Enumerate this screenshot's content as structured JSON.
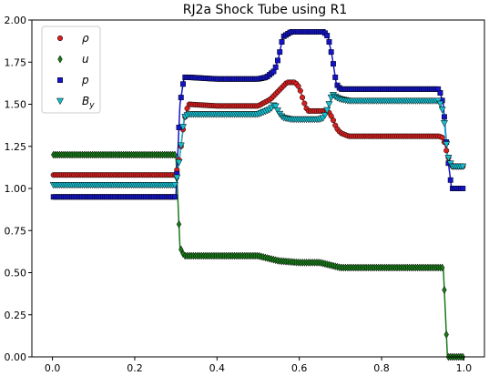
{
  "chart_data": {
    "type": "scatter",
    "title": "RJ2a Shock Tube using R1",
    "xlim": [
      -0.05,
      1.05
    ],
    "ylim": [
      0.0,
      2.0
    ],
    "xticks": [
      "0.0",
      "0.2",
      "0.4",
      "0.6",
      "0.8",
      "1.0"
    ],
    "yticks": [
      "0.00",
      "0.25",
      "0.50",
      "0.75",
      "1.00",
      "1.25",
      "1.50",
      "1.75",
      "2.00"
    ],
    "grid": false,
    "legend_position": "top-left",
    "series": [
      {
        "name": "ρ",
        "marker": "circle",
        "color": "#d62020",
        "line_color": "#d62020",
        "x": [
          0.0,
          0.1,
          0.2,
          0.3,
          0.31,
          0.32,
          0.33,
          0.4,
          0.5,
          0.53,
          0.55,
          0.57,
          0.59,
          0.6,
          0.61,
          0.62,
          0.64,
          0.67,
          0.68,
          0.69,
          0.7,
          0.72,
          0.8,
          0.9,
          0.94,
          0.95,
          0.96,
          0.97,
          1.0
        ],
        "values": [
          1.08,
          1.08,
          1.08,
          1.08,
          1.2,
          1.4,
          1.5,
          1.49,
          1.49,
          1.53,
          1.58,
          1.63,
          1.63,
          1.6,
          1.52,
          1.46,
          1.46,
          1.46,
          1.42,
          1.36,
          1.33,
          1.31,
          1.31,
          1.31,
          1.31,
          1.3,
          1.2,
          1.13,
          1.13
        ]
      },
      {
        "name": "u",
        "marker": "diamond",
        "color": "#1a7a1a",
        "line_color": "#1a7a1a",
        "x": [
          0.0,
          0.1,
          0.2,
          0.3,
          0.31,
          0.32,
          0.33,
          0.4,
          0.5,
          0.55,
          0.6,
          0.65,
          0.7,
          0.8,
          0.9,
          0.94,
          0.95,
          0.96,
          0.97,
          1.0
        ],
        "values": [
          1.2,
          1.2,
          1.2,
          1.2,
          0.65,
          0.6,
          0.6,
          0.6,
          0.6,
          0.57,
          0.56,
          0.56,
          0.53,
          0.53,
          0.53,
          0.53,
          0.53,
          0.0,
          0.0,
          0.0
        ]
      },
      {
        "name": "p",
        "marker": "square",
        "color": "#1414cc",
        "line_color": "#1414cc",
        "x": [
          0.0,
          0.1,
          0.2,
          0.3,
          0.31,
          0.32,
          0.33,
          0.4,
          0.5,
          0.52,
          0.54,
          0.55,
          0.56,
          0.58,
          0.6,
          0.63,
          0.66,
          0.67,
          0.68,
          0.69,
          0.7,
          0.72,
          0.8,
          0.9,
          0.94,
          0.95,
          0.96,
          0.97,
          1.0
        ],
        "values": [
          0.95,
          0.95,
          0.95,
          0.95,
          1.5,
          1.66,
          1.66,
          1.65,
          1.65,
          1.66,
          1.7,
          1.78,
          1.9,
          1.93,
          1.93,
          1.93,
          1.93,
          1.9,
          1.78,
          1.62,
          1.59,
          1.59,
          1.59,
          1.59,
          1.59,
          1.5,
          1.2,
          1.0,
          1.0
        ]
      },
      {
        "name": "B_y",
        "marker": "triangle-down",
        "color": "#17becf",
        "line_color": "#17becf",
        "x": [
          0.0,
          0.1,
          0.2,
          0.3,
          0.31,
          0.32,
          0.33,
          0.4,
          0.5,
          0.53,
          0.54,
          0.55,
          0.56,
          0.58,
          0.6,
          0.65,
          0.66,
          0.67,
          0.68,
          0.69,
          0.7,
          0.72,
          0.8,
          0.9,
          0.94,
          0.95,
          0.96,
          0.97,
          1.0
        ],
        "values": [
          1.02,
          1.02,
          1.02,
          1.02,
          1.2,
          1.42,
          1.44,
          1.44,
          1.44,
          1.47,
          1.5,
          1.45,
          1.42,
          1.41,
          1.41,
          1.41,
          1.42,
          1.48,
          1.56,
          1.54,
          1.53,
          1.52,
          1.52,
          1.52,
          1.52,
          1.45,
          1.2,
          1.13,
          1.13
        ]
      }
    ]
  }
}
